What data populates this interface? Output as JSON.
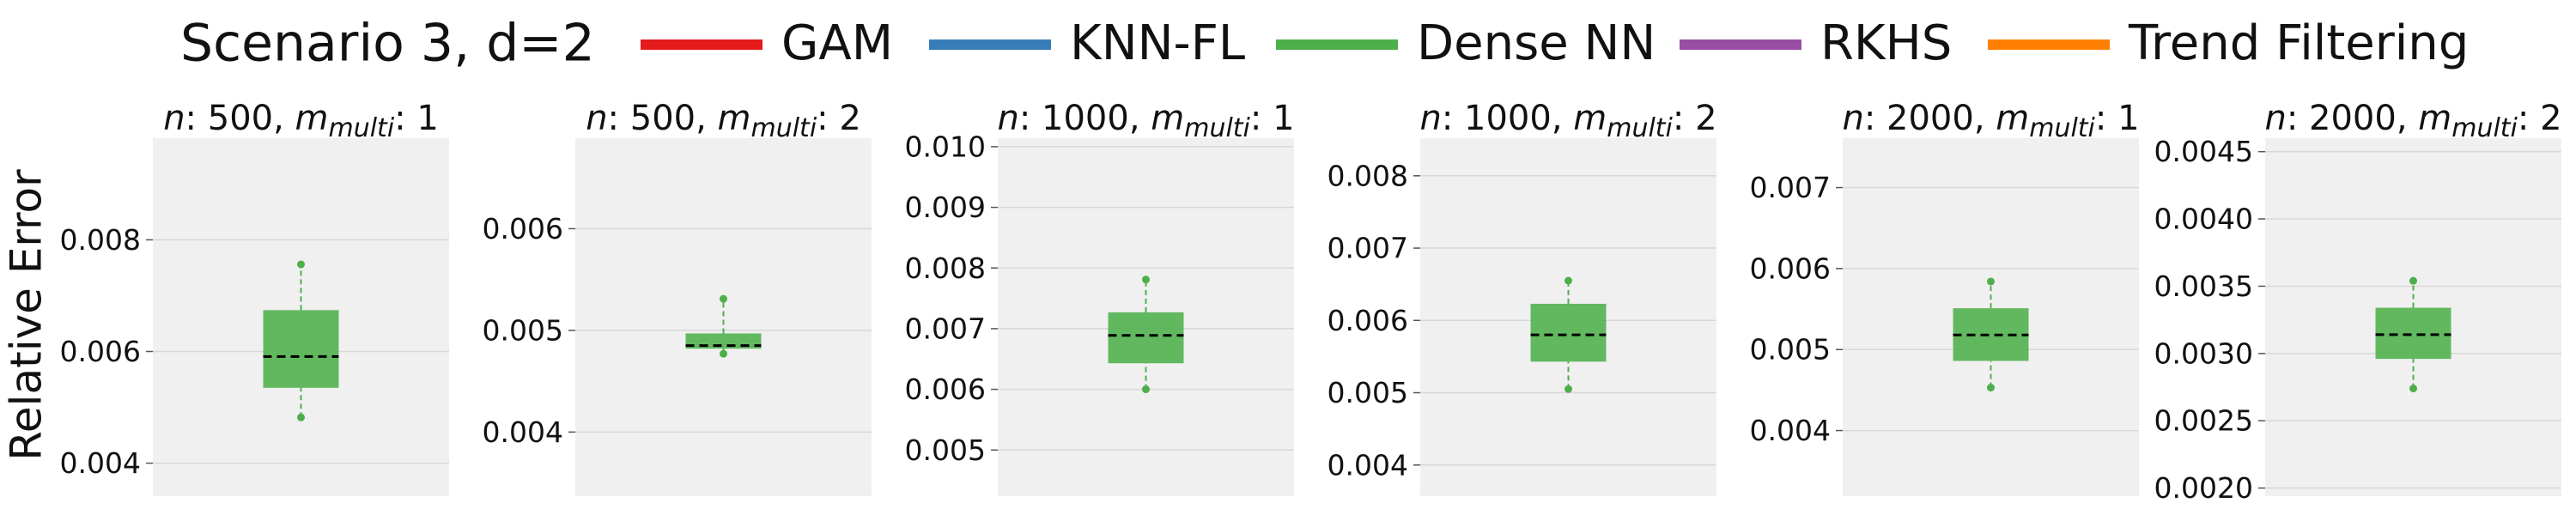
{
  "chart_data": {
    "type": "box",
    "title": "Scenario 3, d=2",
    "y_label": "Relative Error",
    "grid": true,
    "series": [
      {
        "name": "GAM",
        "color": "#e41a1c"
      },
      {
        "name": "KNN-FL",
        "color": "#377eb8"
      },
      {
        "name": "Dense NN",
        "color": "#4daf4a",
        "boxes": [
          {
            "whisker_low": 0.00482,
            "q1": 0.00535,
            "median": 0.00591,
            "q3": 0.00674,
            "whisker_high": 0.00756
          },
          {
            "whisker_low": 0.00477,
            "q1": 0.00482,
            "median": 0.00485,
            "q3": 0.00497,
            "whisker_high": 0.00531
          },
          {
            "whisker_low": 0.006,
            "q1": 0.00643,
            "median": 0.00689,
            "q3": 0.00727,
            "whisker_high": 0.00781
          },
          {
            "whisker_low": 0.00505,
            "q1": 0.00543,
            "median": 0.0058,
            "q3": 0.00623,
            "whisker_high": 0.00655
          },
          {
            "whisker_low": 0.00453,
            "q1": 0.00486,
            "median": 0.00518,
            "q3": 0.00551,
            "whisker_high": 0.00584
          },
          {
            "whisker_low": 0.00274,
            "q1": 0.00296,
            "median": 0.00314,
            "q3": 0.00334,
            "whisker_high": 0.00354
          }
        ]
      },
      {
        "name": "RKHS",
        "color": "#984ea3"
      },
      {
        "name": "Trend Filtering",
        "color": "#ff7f00"
      }
    ],
    "panels": [
      {
        "title": [
          "n",
          ": 500, ",
          "m",
          "multi",
          ": 1"
        ],
        "ylim": [
          0.00341,
          0.00982
        ],
        "yticks": [
          0.004,
          0.006,
          0.008
        ]
      },
      {
        "title": [
          "n",
          ": 500, ",
          "m",
          "multi",
          ": 2"
        ],
        "ylim": [
          0.00337,
          0.00689
        ],
        "yticks": [
          0.004,
          0.005,
          0.006
        ]
      },
      {
        "title": [
          "n",
          ": 1000, ",
          "m",
          "multi",
          ": 1"
        ],
        "ylim": [
          0.00424,
          0.01014
        ],
        "yticks": [
          0.005,
          0.006,
          0.007,
          0.008,
          0.009,
          {
            "value": 0.01,
            "label": "0.010"
          }
        ]
      },
      {
        "title": [
          "n",
          ": 1000, ",
          "m",
          "multi",
          ": 2"
        ],
        "ylim": [
          0.00357,
          0.00852
        ],
        "yticks": [
          0.004,
          0.005,
          0.006,
          0.007,
          0.008
        ]
      },
      {
        "title": [
          "n",
          ": 2000, ",
          "m",
          "multi",
          ": 1"
        ],
        "ylim": [
          0.00319,
          0.00761
        ],
        "yticks": [
          0.004,
          0.005,
          0.006,
          0.007
        ]
      },
      {
        "title": [
          "n",
          ": 2000, ",
          "m",
          "multi",
          ": 2"
        ],
        "ylim": [
          0.00194,
          0.0046
        ],
        "yticks": [
          {
            "value": 0.002,
            "label": "0.0020"
          },
          0.0025,
          {
            "value": 0.003,
            "label": "0.0030"
          },
          0.0035,
          {
            "value": 0.004,
            "label": "0.0040"
          },
          0.0045
        ]
      }
    ]
  }
}
